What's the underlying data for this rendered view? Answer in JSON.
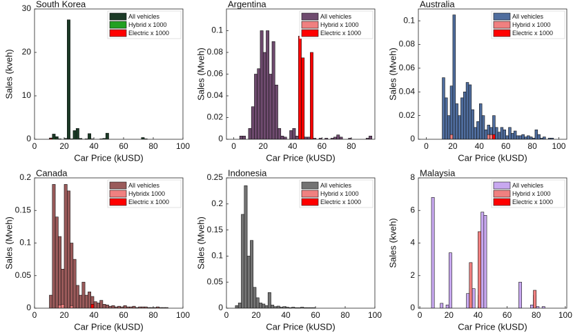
{
  "chart_data": [
    {
      "type": "histogram",
      "title": "South Korea",
      "xlabel": "Car Price (kUSD)",
      "ylabel": "Sales (kveh)",
      "legend": "upper right",
      "xlim": [
        0,
        100
      ],
      "xticks": [
        0,
        20,
        40,
        60,
        80,
        100
      ],
      "ylim": [
        0,
        30
      ],
      "yticks": [
        0,
        10,
        20,
        30
      ],
      "bins": [
        10,
        12,
        14,
        16,
        18,
        20,
        22,
        24,
        26,
        28,
        30,
        32,
        34,
        36,
        38,
        40,
        42,
        44,
        46,
        48,
        50,
        52,
        54,
        56,
        58,
        60,
        62,
        64,
        66,
        68,
        70,
        72,
        74,
        76
      ],
      "series": [
        {
          "name": "All vehicles",
          "color": "#1b3a26",
          "values": [
            0.3,
            1.2,
            0.6,
            0.1,
            0,
            0.2,
            27.5,
            0.1,
            2.0,
            2.5,
            0.2,
            0,
            0.1,
            1.3,
            0.1,
            0,
            0,
            0.1,
            0.2,
            1.4,
            0,
            0,
            0,
            0,
            0,
            0,
            0,
            0,
            0,
            0,
            0,
            0.4,
            0.1
          ]
        },
        {
          "name": "Hybrid x 1000",
          "color": "#22a022",
          "values": [
            0,
            0.2,
            0,
            0,
            0,
            0,
            0.1,
            0,
            0,
            0,
            0,
            0,
            0,
            0,
            0,
            0,
            0,
            0,
            0,
            0,
            0,
            0,
            0,
            0,
            0,
            0,
            0,
            0,
            0,
            0,
            0,
            0,
            0
          ]
        },
        {
          "name": "Electric x 1000",
          "color": "#ff0000",
          "values": [
            0.2,
            0,
            0,
            0,
            0,
            0,
            0.1,
            0,
            0,
            0,
            0,
            0,
            0,
            0,
            0,
            0,
            0,
            0,
            0,
            0,
            0,
            0,
            0,
            0,
            0,
            0,
            0,
            0,
            0,
            0,
            0,
            0,
            0
          ]
        }
      ]
    },
    {
      "type": "histogram",
      "title": "Argentina",
      "xlabel": "Car Price (kUSD)",
      "ylabel": "Sales (Mveh)",
      "legend": "upper right",
      "xlim": [
        -5,
        96
      ],
      "xticks": [
        0,
        20,
        40,
        60,
        80
      ],
      "ylim": [
        0,
        0.12
      ],
      "yticks": [
        0,
        0.02,
        0.04,
        0.06,
        0.08,
        0.1
      ],
      "bins": [
        4,
        6,
        8,
        10,
        12,
        14,
        16,
        18,
        20,
        22,
        24,
        26,
        28,
        30,
        32,
        34,
        36,
        38,
        40,
        42,
        44,
        46,
        48,
        50,
        52,
        54,
        56,
        58,
        60,
        62,
        64,
        66,
        68,
        70,
        72,
        74,
        76,
        78,
        80,
        82,
        84,
        86,
        88,
        90,
        92,
        94
      ],
      "series": [
        {
          "name": "All vehicles",
          "color": "#6e4a6e",
          "values": [
            0.003,
            0.003,
            0,
            0.01,
            0.03,
            0.06,
            0.065,
            0.1,
            0.08,
            0.1,
            0.06,
            0.09,
            0.05,
            0.01,
            0.003,
            0.002,
            0,
            0.008,
            0.01,
            0.003,
            0.01,
            0.003,
            0.002,
            0.002,
            0.003,
            0.001,
            0,
            0.001,
            0,
            0.001,
            0,
            0.001,
            0.002,
            0.004,
            0.002,
            0,
            0,
            0.001,
            0,
            0,
            0,
            0,
            0,
            0.001,
            0.003
          ]
        },
        {
          "name": "Hybrid x 1000",
          "color": "#f08080",
          "values": [
            0,
            0,
            0,
            0,
            0,
            0,
            0,
            0,
            0,
            0,
            0,
            0,
            0,
            0,
            0,
            0,
            0,
            0,
            0,
            0,
            0.002,
            0,
            0,
            0,
            0,
            0,
            0,
            0,
            0,
            0,
            0,
            0,
            0,
            0,
            0,
            0,
            0,
            0,
            0,
            0,
            0,
            0,
            0,
            0,
            0
          ]
        },
        {
          "name": "Electric x 1000",
          "color": "#ff0000",
          "values": [
            0,
            0,
            0,
            0,
            0,
            0,
            0,
            0,
            0,
            0,
            0,
            0,
            0,
            0,
            0,
            0,
            0,
            0,
            0,
            0,
            0.095,
            0.075,
            0,
            0,
            0.08,
            0,
            0,
            0,
            0,
            0,
            0,
            0,
            0,
            0,
            0,
            0,
            0,
            0,
            0,
            0,
            0,
            0,
            0,
            0,
            0
          ]
        }
      ]
    },
    {
      "type": "histogram",
      "title": "Australia",
      "xlabel": "Car Price (kUSD)",
      "ylabel": "Sales (Mveh)",
      "legend": "upper right",
      "xlim": [
        -6,
        106
      ],
      "xticks": [
        0,
        20,
        40,
        60,
        80,
        100
      ],
      "ylim": [
        0,
        0.11
      ],
      "yticks": [
        0,
        0.02,
        0.04,
        0.06,
        0.08,
        0.1
      ],
      "bins": [
        12,
        14,
        16,
        18,
        20,
        22,
        24,
        26,
        28,
        30,
        32,
        34,
        36,
        38,
        40,
        42,
        44,
        46,
        48,
        50,
        52,
        54,
        56,
        58,
        60,
        62,
        64,
        66,
        68,
        70,
        72,
        74,
        76,
        78,
        80,
        82,
        84,
        86,
        88,
        90,
        92,
        94,
        96
      ],
      "series": [
        {
          "name": "All vehicles",
          "color": "#4f6d9e",
          "values": [
            0.052,
            0.035,
            0.02,
            0.045,
            0.105,
            0.03,
            0.02,
            0.035,
            0.04,
            0.048,
            0.046,
            0.025,
            0.01,
            0.015,
            0.03,
            0.02,
            0.008,
            0.012,
            0.01,
            0.02,
            0.01,
            0.006,
            0.01,
            0.008,
            0.003,
            0.01,
            0.005,
            0.007,
            0.003,
            0.003,
            0.004,
            0.002,
            0.003,
            0.002,
            0.001,
            0.008,
            0.004,
            0.001,
            0.002,
            0,
            0.001,
            0.001
          ]
        },
        {
          "name": "Hybrid x 1000",
          "color": "#f08080",
          "values": [
            0,
            0,
            0,
            0.004,
            0,
            0,
            0,
            0,
            0,
            0,
            0,
            0,
            0,
            0,
            0,
            0,
            0,
            0.004,
            0.004,
            0,
            0,
            0,
            0,
            0,
            0,
            0,
            0,
            0,
            0,
            0,
            0,
            0,
            0,
            0,
            0,
            0,
            0,
            0,
            0,
            0,
            0,
            0
          ]
        },
        {
          "name": "Electric x 1000",
          "color": "#ff0000",
          "values": [
            0,
            0,
            0,
            0,
            0,
            0,
            0,
            0,
            0,
            0,
            0,
            0,
            0,
            0,
            0,
            0,
            0,
            0,
            0,
            0.004,
            0,
            0,
            0,
            0,
            0,
            0,
            0,
            0,
            0,
            0,
            0,
            0,
            0,
            0,
            0,
            0,
            0,
            0,
            0,
            0,
            0,
            0
          ]
        }
      ]
    },
    {
      "type": "histogram",
      "title": "Canada",
      "xlabel": "Car Price (kUSD)",
      "ylabel": "Sales (Mveh)",
      "legend": "upper right",
      "xlim": [
        0,
        100
      ],
      "xticks": [
        0,
        20,
        40,
        60,
        80,
        100
      ],
      "ylim": [
        0,
        0.2
      ],
      "yticks": [
        0,
        0.05,
        0.1,
        0.15,
        0.2
      ],
      "bins": [
        10,
        12,
        14,
        16,
        18,
        20,
        22,
        24,
        26,
        28,
        30,
        32,
        34,
        36,
        38,
        40,
        42,
        44,
        46,
        48,
        50,
        52,
        54,
        56,
        58,
        60,
        62,
        64,
        66,
        68,
        70,
        72,
        74,
        76,
        78,
        80,
        82,
        84,
        86,
        88,
        90
      ],
      "series": [
        {
          "name": "All vehicles",
          "color": "#9a5a5a",
          "values": [
            0.02,
            0.19,
            0.14,
            0.11,
            0.06,
            0.19,
            0.18,
            0.1,
            0.075,
            0.035,
            0.02,
            0.04,
            0.02,
            0.025,
            0.018,
            0.01,
            0.008,
            0.012,
            0.006,
            0.005,
            0.003,
            0.004,
            0.002,
            0.003,
            0.002,
            0.004,
            0.002,
            0.002,
            0.003,
            0.001,
            0.002,
            0.002,
            0.002,
            0.001,
            0.001,
            0.001,
            0.002,
            0.001,
            0.001,
            0.001
          ]
        },
        {
          "name": "Hybridx 1000",
          "color": "#f08080",
          "values": [
            0,
            0,
            0,
            0.005,
            0.006,
            0,
            0,
            0.004,
            0,
            0,
            0,
            0,
            0,
            0,
            0.003,
            0,
            0,
            0,
            0,
            0,
            0,
            0,
            0,
            0,
            0,
            0,
            0,
            0,
            0,
            0,
            0,
            0,
            0,
            0,
            0,
            0,
            0,
            0,
            0,
            0
          ]
        },
        {
          "name": "Electric  x 1000",
          "color": "#ff0000",
          "values": [
            0,
            0,
            0,
            0,
            0,
            0,
            0,
            0,
            0,
            0,
            0,
            0,
            0,
            0,
            0.006,
            0,
            0,
            0,
            0,
            0,
            0,
            0,
            0,
            0,
            0,
            0,
            0,
            0,
            0,
            0,
            0,
            0,
            0,
            0,
            0,
            0,
            0,
            0,
            0,
            0
          ]
        }
      ]
    },
    {
      "type": "histogram",
      "title": "Indonesia",
      "xlabel": "Car Price (kUSD)",
      "ylabel": "Sales (Mveh)",
      "legend": "upper right",
      "xlim": [
        0,
        100
      ],
      "xticks": [
        0,
        20,
        40,
        60,
        80,
        100
      ],
      "ylim": [
        0,
        0.25
      ],
      "yticks": [
        0,
        0.05,
        0.1,
        0.15,
        0.2,
        0.25
      ],
      "bins": [
        6,
        8,
        10,
        12,
        14,
        16,
        18,
        20,
        22,
        24,
        26,
        28,
        30,
        32,
        34,
        36,
        38,
        40,
        42,
        44,
        46,
        48,
        50,
        52,
        54,
        56,
        58,
        60
      ],
      "series": [
        {
          "name": "All vehicles",
          "color": "#737373",
          "values": [
            0.005,
            0.01,
            0.18,
            0.235,
            0.1,
            0.13,
            0.04,
            0.02,
            0.01,
            0.008,
            0.005,
            0.03,
            0.006,
            0.003,
            0.004,
            0.002,
            0.003,
            0.002,
            0.001,
            0.002,
            0.001,
            0.001,
            0.002,
            0.001,
            0.001,
            0.001,
            0.001
          ]
        },
        {
          "name": "Hybrid x 1000",
          "color": "#f08080",
          "values": [
            0,
            0,
            0,
            0,
            0,
            0,
            0,
            0,
            0,
            0,
            0,
            0,
            0,
            0,
            0,
            0,
            0,
            0,
            0,
            0,
            0,
            0,
            0,
            0,
            0,
            0,
            0
          ]
        },
        {
          "name": "Electric x 1000",
          "color": "#ff0000",
          "values": [
            0,
            0,
            0,
            0,
            0,
            0,
            0,
            0,
            0,
            0,
            0,
            0,
            0,
            0,
            0,
            0,
            0,
            0,
            0,
            0,
            0,
            0,
            0,
            0,
            0,
            0,
            0
          ]
        }
      ]
    },
    {
      "type": "histogram",
      "title": "Malaysia",
      "xlabel": "Car Price (kUSD)",
      "ylabel": "Sales (kveh)",
      "legend": "upper right",
      "xlim": [
        -1,
        101
      ],
      "xticks": [
        0,
        20,
        40,
        60,
        80,
        100
      ],
      "ylim": [
        0,
        8
      ],
      "yticks": [
        0,
        2,
        4,
        6,
        8
      ],
      "bins": [
        6,
        8,
        10,
        12,
        14,
        16,
        18,
        20,
        22,
        24,
        26,
        28,
        30,
        32,
        34,
        36,
        38,
        40,
        42,
        44,
        46,
        48,
        50,
        52,
        54,
        56,
        58,
        60,
        62,
        64,
        66,
        68,
        70,
        72,
        74,
        76,
        78,
        80,
        82,
        84,
        86
      ],
      "series": [
        {
          "name": "All vehicles",
          "color": "#c8a8f0",
          "values": [
            0,
            6.8,
            0,
            0,
            0.3,
            0,
            0.2,
            3.4,
            0,
            0,
            0,
            0,
            0,
            0.9,
            1.2,
            1.2,
            0,
            0.8,
            5.9,
            5.7,
            0,
            0,
            0,
            0,
            0,
            0,
            0,
            0,
            0,
            0,
            0,
            1.6,
            0,
            0,
            0,
            0.2,
            0.8,
            0.1,
            0,
            0.1
          ]
        },
        {
          "name": "Hybrid x 1000",
          "color": "#f08080",
          "values": [
            0,
            0,
            0,
            0,
            0,
            0,
            0,
            0,
            0,
            0,
            0,
            0,
            0,
            0,
            2.8,
            0,
            0,
            4.7,
            0,
            0,
            0,
            0,
            0,
            0,
            0,
            0,
            0,
            0,
            0,
            0,
            0,
            0,
            0,
            0,
            0,
            0,
            1.1,
            0,
            0,
            0
          ]
        },
        {
          "name": "Electric x 1000",
          "color": "#ff0000",
          "values": [
            0,
            0,
            0,
            0,
            0,
            0,
            0,
            0,
            0,
            0,
            0,
            0,
            0,
            0,
            0,
            0,
            0,
            0,
            0,
            0,
            0,
            0,
            0,
            0,
            0,
            0,
            0,
            0,
            0,
            0,
            0,
            0,
            0,
            0,
            0,
            0,
            0,
            0,
            0,
            0
          ]
        }
      ]
    }
  ]
}
